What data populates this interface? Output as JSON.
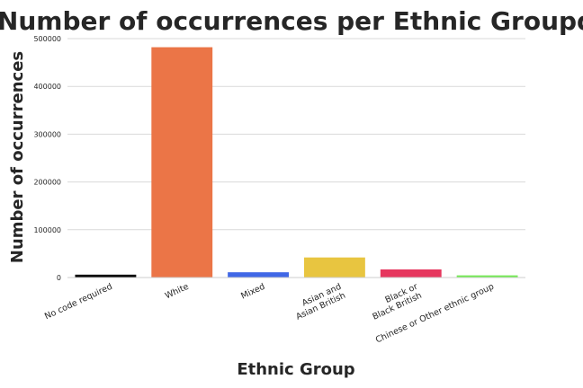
{
  "chart_data": {
    "type": "bar",
    "title": "Number of occurrences per Ethnic Groupd",
    "xlabel": "Ethnic Group",
    "ylabel": "Number of occurrences",
    "ylim": [
      0,
      500000
    ],
    "yticks": [
      0,
      100000,
      200000,
      300000,
      400000,
      500000
    ],
    "grid": true,
    "categories": [
      [
        "No code required"
      ],
      [
        "White"
      ],
      [
        "Mixed"
      ],
      [
        "Asian and",
        "Asian British"
      ],
      [
        "Black or",
        "Black British"
      ],
      [
        "Chinese or Other ethnic group"
      ]
    ],
    "values": [
      6000,
      482000,
      11000,
      42000,
      17000,
      4500
    ],
    "colors": [
      "#000000",
      "#eb7547",
      "#4067e6",
      "#e8c540",
      "#e6375e",
      "#72ea52"
    ]
  }
}
